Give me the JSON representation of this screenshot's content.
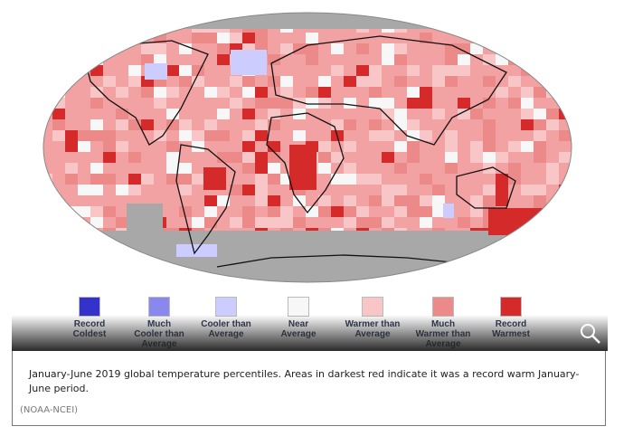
{
  "legend": [
    {
      "label": "Record\nColdest",
      "color": "#3333cc"
    },
    {
      "label": "Much\nCooler than\nAverage",
      "color": "#8888ee"
    },
    {
      "label": "Cooler than\nAverage",
      "color": "#ccccff"
    },
    {
      "label": "Near\nAverage",
      "color": "#f7f7f7"
    },
    {
      "label": "Warmer than\nAverage",
      "color": "#f8c6c6"
    },
    {
      "label": "Much\nWarmer than\nAverage",
      "color": "#ec8a8a"
    },
    {
      "label": "Record\nWarmest",
      "color": "#d42a2a"
    }
  ],
  "caption": {
    "text": "January-June 2019 global temperature percentiles. Areas in darkest red indicate it was a record warm January-June period.",
    "source": "(NOAA-NCEI)"
  }
}
